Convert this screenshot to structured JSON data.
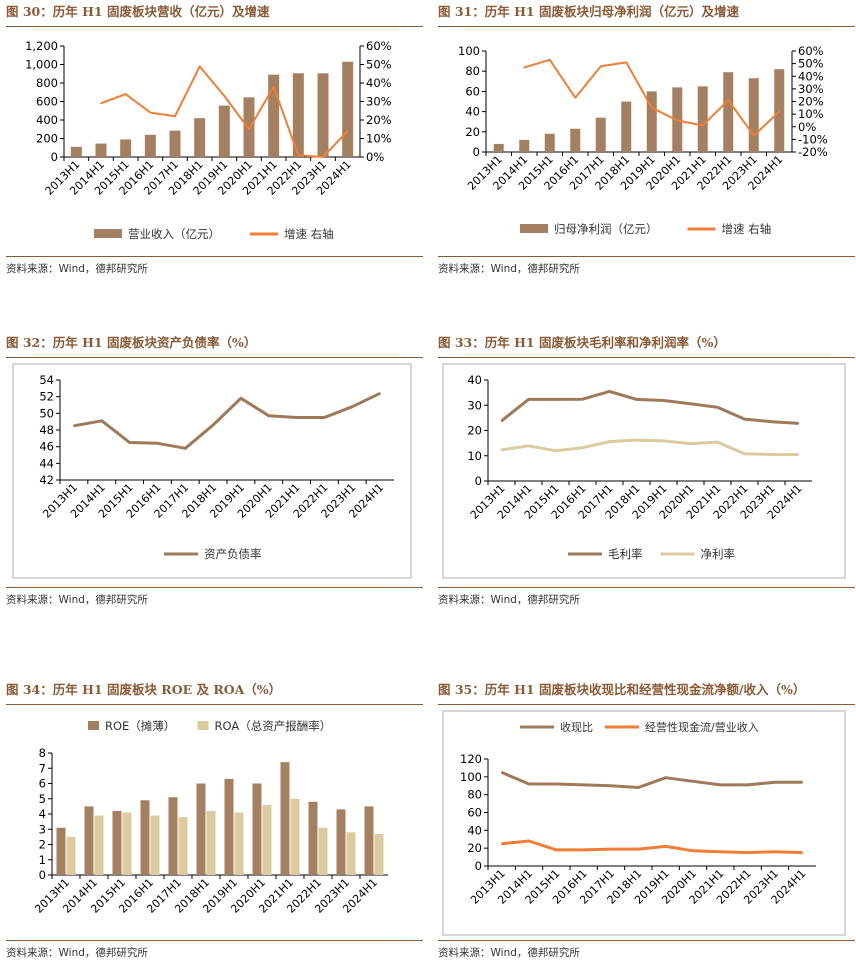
{
  "colors": {
    "bar": "#a48060",
    "line": "#f07f35",
    "dark": "#9e7a59",
    "light": "#dccb9e",
    "title": "#8a5a35"
  },
  "source_text": "资料来源：Wind，德邦研究所",
  "panels": [
    {
      "title": "图 30：历年 H1 固废板块营收（亿元）及增速",
      "chart_data": {
        "type": "bar",
        "categories": [
          "2013H1",
          "2014H1",
          "2015H1",
          "2016H1",
          "2017H1",
          "2018H1",
          "2019H1",
          "2020H1",
          "2021H1",
          "2022H1",
          "2023H1",
          "2024H1"
        ],
        "series": [
          {
            "name": "营业收入（亿元）",
            "kind": "bar",
            "axis": "left",
            "values": [
              110,
              145,
              190,
              240,
              285,
              420,
              555,
              645,
              890,
              905,
              905,
              1030
            ]
          },
          {
            "name": "增速 右轴",
            "kind": "line",
            "axis": "right",
            "values": [
              null,
              29,
              34,
              24,
              22,
              49,
              33,
              15,
              38,
              1,
              0,
              14
            ]
          }
        ],
        "ylim": [
          0,
          1200
        ],
        "yticks": [
          0,
          200,
          400,
          600,
          800,
          1000,
          1200
        ],
        "ytick_labels": [
          "0",
          "200",
          "400",
          "600",
          "800",
          "1,000",
          "1,200"
        ],
        "y2lim": [
          0,
          60
        ],
        "y2ticks": [
          0,
          10,
          20,
          30,
          40,
          50,
          60
        ],
        "y2tick_labels": [
          "0%",
          "10%",
          "20%",
          "30%",
          "40%",
          "50%",
          "60%"
        ],
        "grid": false,
        "legend": "bottom"
      }
    },
    {
      "title": "图 31：历年 H1 固废板块归母净利润（亿元）及增速",
      "chart_data": {
        "type": "bar",
        "categories": [
          "2013H1",
          "2014H1",
          "2015H1",
          "2016H1",
          "2017H1",
          "2018H1",
          "2019H1",
          "2020H1",
          "2021H1",
          "2022H1",
          "2023H1",
          "2024H1"
        ],
        "series": [
          {
            "name": "归母净利润（亿元）",
            "kind": "bar",
            "axis": "left",
            "values": [
              8,
              12,
              18,
              23,
              34,
              50,
              60,
              64,
              65,
              79,
              73,
              82
            ]
          },
          {
            "name": "增速 右轴",
            "kind": "line",
            "axis": "right",
            "values": [
              null,
              47,
              53,
              23,
              48,
              51,
              15,
              5,
              1,
              21,
              -7,
              12
            ]
          }
        ],
        "ylim": [
          0,
          100
        ],
        "yticks": [
          0,
          20,
          40,
          60,
          80,
          100
        ],
        "ytick_labels": [
          "0",
          "20",
          "40",
          "60",
          "80",
          "100"
        ],
        "y2lim": [
          -20,
          60
        ],
        "y2ticks": [
          -20,
          -10,
          0,
          10,
          20,
          30,
          40,
          50,
          60
        ],
        "y2tick_labels": [
          "-20%",
          "-10%",
          "0%",
          "10%",
          "20%",
          "30%",
          "40%",
          "50%",
          "60%"
        ],
        "grid": false,
        "legend": "bottom"
      }
    },
    {
      "title": "图 32：历年 H1 固废板块资产负债率（%）",
      "chart_data": {
        "type": "line",
        "categories": [
          "2013H1",
          "2014H1",
          "2015H1",
          "2016H1",
          "2017H1",
          "2018H1",
          "2019H1",
          "2020H1",
          "2021H1",
          "2022H1",
          "2023H1",
          "2024H1"
        ],
        "series": [
          {
            "name": "资产负债率",
            "values": [
              48.5,
              49.1,
              46.5,
              46.4,
              45.8,
              48.6,
              51.8,
              49.7,
              49.5,
              49.5,
              50.8,
              52.4
            ]
          }
        ],
        "ylim": [
          42,
          54
        ],
        "yticks": [
          42,
          44,
          46,
          48,
          50,
          52,
          54
        ],
        "ytick_labels": [
          "42",
          "44",
          "46",
          "48",
          "50",
          "52",
          "54"
        ],
        "grid": false,
        "legend": "bottom"
      }
    },
    {
      "title": "图 33：历年 H1 固废板块毛利率和净利润率（%）",
      "chart_data": {
        "type": "line",
        "categories": [
          "2013H1",
          "2014H1",
          "2015H1",
          "2016H1",
          "2017H1",
          "2018H1",
          "2019H1",
          "2020H1",
          "2021H1",
          "2022H1",
          "2023H1",
          "2024H1"
        ],
        "series": [
          {
            "name": "毛利率",
            "values": [
              23.8,
              32.3,
              32.3,
              32.4,
              35.5,
              32.3,
              31.9,
              30.6,
              29.2,
              24.5,
              23.5,
              22.8
            ]
          },
          {
            "name": "净利率",
            "values": [
              12.3,
              13.9,
              12.0,
              13.2,
              15.6,
              16.2,
              15.9,
              14.8,
              15.4,
              10.8,
              10.5,
              10.5
            ]
          }
        ],
        "ylim": [
          0,
          40
        ],
        "yticks": [
          0,
          10,
          20,
          30,
          40
        ],
        "ytick_labels": [
          "0",
          "10",
          "20",
          "30",
          "40"
        ],
        "grid": false,
        "legend": "bottom"
      }
    },
    {
      "title": "图 34：历年 H1 固废板块 ROE 及 ROA（%）",
      "chart_data": {
        "type": "bar",
        "categories": [
          "2013H1",
          "2014H1",
          "2015H1",
          "2016H1",
          "2017H1",
          "2018H1",
          "2019H1",
          "2020H1",
          "2021H1",
          "2022H1",
          "2023H1",
          "2024H1"
        ],
        "series": [
          {
            "name": "ROE（摊薄）",
            "values": [
              3.1,
              4.5,
              4.2,
              4.9,
              5.1,
              6.0,
              6.3,
              6.0,
              7.4,
              4.8,
              4.3,
              4.5
            ]
          },
          {
            "name": "ROA（总资产报酬率）",
            "values": [
              2.5,
              3.9,
              4.1,
              3.9,
              3.8,
              4.2,
              4.1,
              4.6,
              5.0,
              3.1,
              2.8,
              2.7
            ]
          }
        ],
        "ylim": [
          0,
          8
        ],
        "yticks": [
          0,
          1,
          2,
          3,
          4,
          5,
          6,
          7,
          8
        ],
        "ytick_labels": [
          "0",
          "1",
          "2",
          "3",
          "4",
          "5",
          "6",
          "7",
          "8"
        ],
        "grid": false,
        "legend": "top"
      }
    },
    {
      "title": "图 35：历年 H1 固废板块收现比和经营性现金流净额/收入（%）",
      "chart_data": {
        "type": "line",
        "categories": [
          "2013H1",
          "2014H1",
          "2015H1",
          "2016H1",
          "2017H1",
          "2018H1",
          "2019H1",
          "2020H1",
          "2021H1",
          "2022H1",
          "2023H1",
          "2024H1"
        ],
        "series": [
          {
            "name": "收现比",
            "values": [
              105,
              92,
              92,
              91,
              90,
              88,
              99,
              95,
              91,
              91,
              94,
              94
            ]
          },
          {
            "name": "经营性现金流/营业收入",
            "values": [
              25,
              28,
              18,
              18,
              19,
              19,
              22,
              17,
              16,
              15,
              16,
              15
            ]
          }
        ],
        "ylim": [
          0,
          120
        ],
        "yticks": [
          0,
          20,
          40,
          60,
          80,
          100,
          120
        ],
        "ytick_labels": [
          "0",
          "20",
          "40",
          "60",
          "80",
          "100",
          "120"
        ],
        "grid": false,
        "legend": "top"
      }
    }
  ]
}
